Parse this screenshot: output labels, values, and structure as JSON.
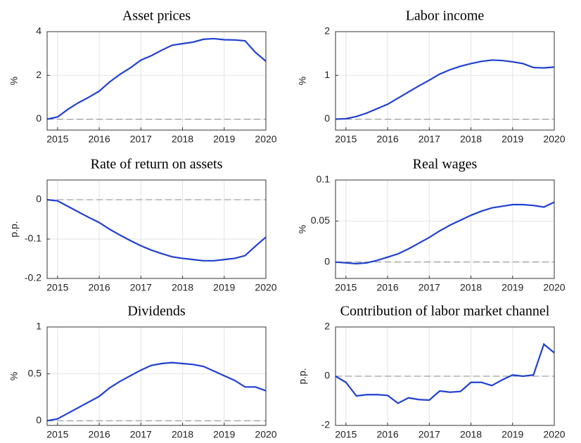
{
  "chart_data": [
    {
      "type": "line",
      "title": "Asset prices",
      "ylabel": "%",
      "x": [
        2014.75,
        2015,
        2015.25,
        2015.5,
        2015.75,
        2016,
        2016.25,
        2016.5,
        2016.75,
        2017,
        2017.25,
        2017.5,
        2017.75,
        2018,
        2018.25,
        2018.5,
        2018.75,
        2019,
        2019.25,
        2019.5,
        2019.75,
        2020
      ],
      "series": [
        {
          "color": "#2040d0",
          "values": [
            0,
            0.1,
            0.45,
            0.75,
            1.0,
            1.28,
            1.7,
            2.05,
            2.35,
            2.7,
            2.9,
            3.15,
            3.38,
            3.45,
            3.52,
            3.65,
            3.68,
            3.63,
            3.62,
            3.58,
            3.05,
            2.65
          ]
        }
      ],
      "xlim": [
        2014.75,
        2020
      ],
      "xticks": [
        2015,
        2016,
        2017,
        2018,
        2019,
        2020
      ],
      "ylim": [
        -0.5,
        4
      ],
      "yticks": [
        0,
        2,
        4
      ],
      "grid": true
    },
    {
      "type": "line",
      "title": "Labor income",
      "ylabel": "%",
      "x": [
        2014.75,
        2015,
        2015.25,
        2015.5,
        2015.75,
        2016,
        2016.25,
        2016.5,
        2016.75,
        2017,
        2017.25,
        2017.5,
        2017.75,
        2018,
        2018.25,
        2018.5,
        2018.75,
        2019,
        2019.25,
        2019.5,
        2019.75,
        2020
      ],
      "series": [
        {
          "color": "#2040d0",
          "values": [
            0,
            0.01,
            0.06,
            0.14,
            0.24,
            0.34,
            0.48,
            0.62,
            0.76,
            0.89,
            1.03,
            1.13,
            1.21,
            1.27,
            1.32,
            1.35,
            1.34,
            1.31,
            1.27,
            1.18,
            1.17,
            1.19
          ]
        }
      ],
      "xlim": [
        2014.75,
        2020
      ],
      "xticks": [
        2015,
        2016,
        2017,
        2018,
        2019,
        2020
      ],
      "ylim": [
        -0.25,
        2
      ],
      "yticks": [
        0,
        1,
        2
      ],
      "grid": true
    },
    {
      "type": "line",
      "title": "Rate of return on assets",
      "ylabel": "p.p.",
      "x": [
        2014.75,
        2015,
        2015.25,
        2015.5,
        2015.75,
        2016,
        2016.25,
        2016.5,
        2016.75,
        2017,
        2017.25,
        2017.5,
        2017.75,
        2018,
        2018.25,
        2018.5,
        2018.75,
        2019,
        2019.25,
        2019.5,
        2019.75,
        2020
      ],
      "series": [
        {
          "color": "#2040d0",
          "values": [
            0,
            -0.003,
            -0.017,
            -0.031,
            -0.045,
            -0.058,
            -0.075,
            -0.09,
            -0.104,
            -0.117,
            -0.128,
            -0.137,
            -0.145,
            -0.149,
            -0.152,
            -0.155,
            -0.155,
            -0.152,
            -0.149,
            -0.142,
            -0.118,
            -0.095
          ]
        }
      ],
      "xlim": [
        2014.75,
        2020
      ],
      "xticks": [
        2015,
        2016,
        2017,
        2018,
        2019,
        2020
      ],
      "ylim": [
        -0.2,
        0.05
      ],
      "yticks": [
        -0.2,
        -0.1,
        0
      ],
      "grid": true
    },
    {
      "type": "line",
      "title": "Real wages",
      "ylabel": "%",
      "x": [
        2014.75,
        2015,
        2015.25,
        2015.5,
        2015.75,
        2016,
        2016.25,
        2016.5,
        2016.75,
        2017,
        2017.25,
        2017.5,
        2017.75,
        2018,
        2018.25,
        2018.5,
        2018.75,
        2019,
        2019.25,
        2019.5,
        2019.75,
        2020
      ],
      "series": [
        {
          "color": "#2040d0",
          "values": [
            0,
            -0.001,
            -0.002,
            -0.001,
            0.002,
            0.006,
            0.01,
            0.016,
            0.023,
            0.03,
            0.038,
            0.045,
            0.051,
            0.057,
            0.062,
            0.066,
            0.068,
            0.07,
            0.07,
            0.069,
            0.067,
            0.073
          ]
        }
      ],
      "xlim": [
        2014.75,
        2020
      ],
      "xticks": [
        2015,
        2016,
        2017,
        2018,
        2019,
        2020
      ],
      "ylim": [
        -0.02,
        0.1
      ],
      "yticks": [
        0,
        0.05,
        0.1
      ],
      "grid": true
    },
    {
      "type": "line",
      "title": "Dividends",
      "ylabel": "%",
      "x": [
        2014.75,
        2015,
        2015.25,
        2015.5,
        2015.75,
        2016,
        2016.25,
        2016.5,
        2016.75,
        2017,
        2017.25,
        2017.5,
        2017.75,
        2018,
        2018.25,
        2018.5,
        2018.75,
        2019,
        2019.25,
        2019.5,
        2019.75,
        2020
      ],
      "series": [
        {
          "color": "#2040d0",
          "values": [
            0,
            0.02,
            0.08,
            0.14,
            0.2,
            0.26,
            0.35,
            0.42,
            0.48,
            0.54,
            0.59,
            0.61,
            0.62,
            0.61,
            0.6,
            0.58,
            0.53,
            0.48,
            0.43,
            0.36,
            0.36,
            0.32
          ]
        }
      ],
      "xlim": [
        2014.75,
        2020
      ],
      "xticks": [
        2015,
        2016,
        2017,
        2018,
        2019,
        2020
      ],
      "ylim": [
        -0.05,
        1
      ],
      "yticks": [
        0,
        0.5,
        1
      ],
      "grid": true
    },
    {
      "type": "line",
      "title": "Contribution of labor market channel",
      "ylabel": "p.p.",
      "x": [
        2014.75,
        2015,
        2015.25,
        2015.5,
        2015.75,
        2016,
        2016.25,
        2016.5,
        2016.75,
        2017,
        2017.25,
        2017.5,
        2017.75,
        2018,
        2018.25,
        2018.5,
        2018.75,
        2019,
        2019.25,
        2019.5,
        2019.75,
        2020
      ],
      "series": [
        {
          "color": "#2040d0",
          "values": [
            0,
            -0.25,
            -0.8,
            -0.75,
            -0.75,
            -0.78,
            -1.1,
            -0.88,
            -0.95,
            -0.97,
            -0.6,
            -0.65,
            -0.62,
            -0.25,
            -0.25,
            -0.38,
            -0.15,
            0.05,
            0,
            0.05,
            1.3,
            0.95
          ]
        }
      ],
      "xlim": [
        2014.75,
        2020
      ],
      "xticks": [
        2015,
        2016,
        2017,
        2018,
        2019,
        2020
      ],
      "ylim": [
        -2,
        2
      ],
      "yticks": [
        -2,
        0,
        2
      ],
      "grid": true
    }
  ]
}
